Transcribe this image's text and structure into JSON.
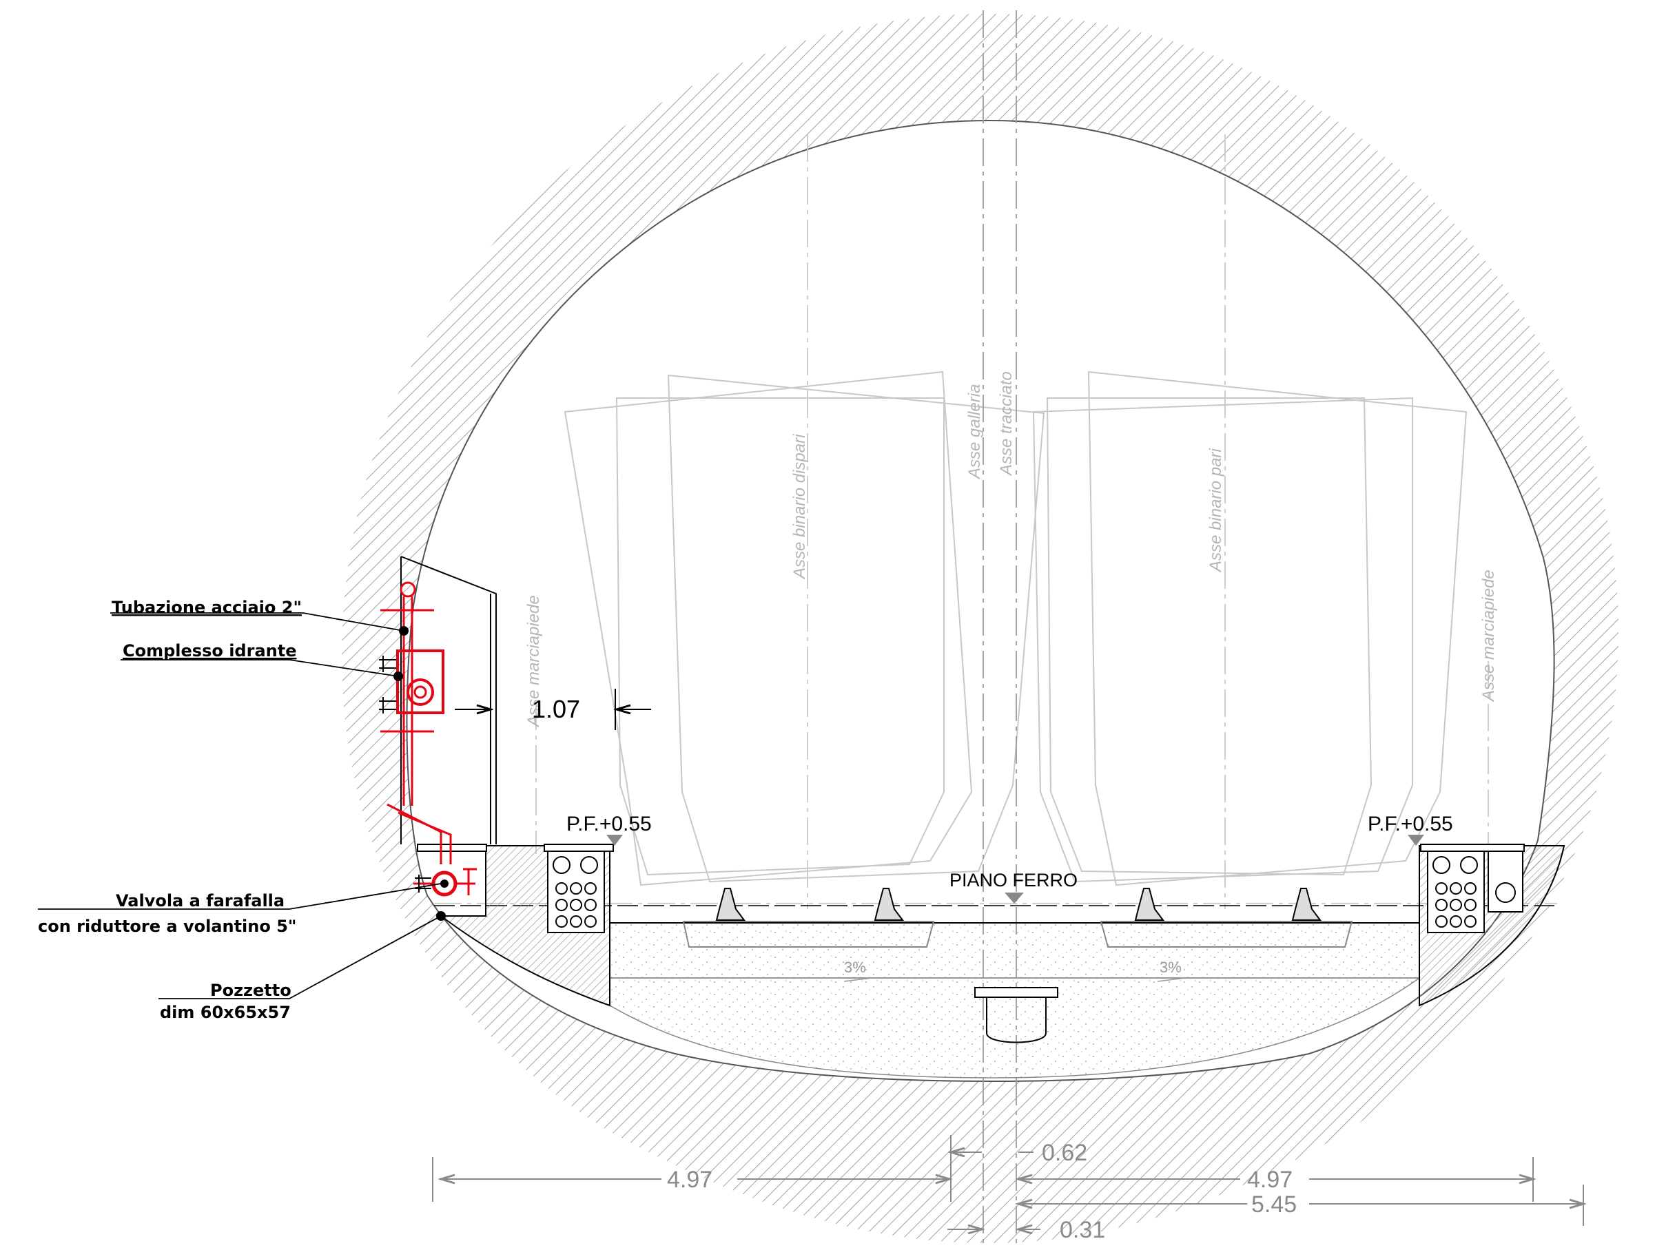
{
  "callouts": {
    "pipe": "Tubazione acciaio 2\"",
    "hydrant": "Complesso idrante",
    "valve_l1": "Valvola a farafalla",
    "valve_l2": "con riduttore a volantino 5\"",
    "well_l1": "Pozzetto",
    "well_l2": "dim 60x65x57"
  },
  "axes": {
    "left_walkway": "Asse marciapiede",
    "track_odd": "Asse binario dispari",
    "tunnel": "Asse galleria",
    "alignment": "Asse tracciato",
    "track_even": "Asse binario pari",
    "right_walkway": "Asse marciapiede"
  },
  "levels": {
    "left": "P.F.+0.55",
    "right": "P.F.+0.55",
    "rail": "PIANO FERRO"
  },
  "slopes": {
    "left": "3%",
    "right": "3%"
  },
  "dimensions": {
    "clearance": "1.07",
    "left_half": "4.97",
    "axis_offset": "0.62",
    "right_half": "4.97",
    "right_total": "5.45",
    "small_offset": "0.31"
  },
  "colors": {
    "line": "#000000",
    "faint": "#c8c8c8",
    "hatch": "#9a9a9a",
    "red": "#e30613",
    "dim": "#8a8a8a"
  }
}
